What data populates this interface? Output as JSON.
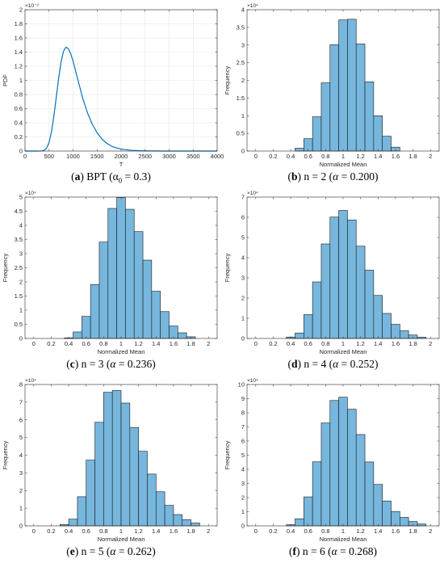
{
  "chart_data": [
    {
      "id": "a",
      "type": "line",
      "caption_letter": "a",
      "caption_text": "BPT (α",
      "caption_sub": "0",
      "caption_rest": " = 0.3)",
      "xlabel": "T",
      "ylabel": "PDF",
      "xlim": [
        0,
        4000
      ],
      "ylim": [
        0,
        0.002
      ],
      "xticks": [
        0,
        500,
        1000,
        1500,
        2000,
        2500,
        3000,
        3500,
        4000
      ],
      "yticks": [
        0,
        0.2,
        0.4,
        0.6,
        0.8,
        1,
        1.2,
        1.4,
        1.6,
        1.8,
        2
      ],
      "yexponent": "×10⁻³",
      "grid": true,
      "color": "#0072BD",
      "series": [
        {
          "x": [
            0,
            250,
            350,
            400,
            450,
            500,
            550,
            600,
            650,
            700,
            750,
            800,
            850,
            900,
            950,
            1000,
            1050,
            1100,
            1200,
            1300,
            1400,
            1500,
            1600,
            1700,
            1800,
            1900,
            2000,
            2200,
            2400,
            2600,
            3000,
            3500,
            4000
          ],
          "y": [
            0,
            0,
            2e-06,
            1.1e-05,
            4.3e-05,
            0.00012,
            0.00027,
            0.00049,
            0.00076,
            0.00103,
            0.00126,
            0.00141,
            0.00147,
            0.00145,
            0.00138,
            0.00127,
            0.00114,
            0.00101,
            0.00075,
            0.00054,
            0.00038,
            0.00026,
            0.00017,
            0.00011,
            7e-05,
            4.5e-05,
            2.8e-05,
            1.1e-05,
            4e-06,
            1.5e-06,
            2e-07,
            0,
            0
          ]
        }
      ]
    },
    {
      "id": "b",
      "type": "bar",
      "caption_letter": "b",
      "caption_text": "n = 2 (",
      "caption_alpha": "α",
      "caption_rest": " = 0.200)",
      "xlabel": "Normalized Mean",
      "ylabel": "Frequency",
      "xlim": [
        -0.1,
        2.1
      ],
      "ylim": [
        0,
        40000
      ],
      "xticks": [
        0,
        0.2,
        0.4,
        0.6,
        0.8,
        1,
        1.2,
        1.4,
        1.6,
        1.8,
        2
      ],
      "yticks": [
        0,
        0.5,
        1,
        1.5,
        2,
        2.5,
        3,
        3.5,
        4
      ],
      "yexponent": "×10⁴",
      "bin_edges": [
        0.45,
        0.55,
        0.65,
        0.75,
        0.85,
        0.95,
        1.05,
        1.15,
        1.25,
        1.35,
        1.45,
        1.55,
        1.65
      ],
      "values": [
        800,
        3500,
        9700,
        19300,
        30100,
        37100,
        37300,
        30300,
        19600,
        10000,
        4200,
        1100
      ],
      "color": "#77B6DD"
    },
    {
      "id": "c",
      "type": "bar",
      "caption_letter": "c",
      "caption_text": "n = 3 (",
      "caption_alpha": "α",
      "caption_rest": " = 0.236)",
      "xlabel": "Normalized Mean",
      "ylabel": "Frequency",
      "xlim": [
        -0.1,
        2.1
      ],
      "ylim": [
        0,
        50000
      ],
      "xticks": [
        0,
        0.2,
        0.4,
        0.6,
        0.8,
        1,
        1.2,
        1.4,
        1.6,
        1.8,
        2
      ],
      "yticks": [
        0,
        0.5,
        1,
        1.5,
        2,
        2.5,
        3,
        3.5,
        4,
        4.5,
        5
      ],
      "yexponent": "×10⁴",
      "bin_edges": [
        0.35,
        0.45,
        0.55,
        0.65,
        0.75,
        0.85,
        0.95,
        1.05,
        1.15,
        1.25,
        1.35,
        1.45,
        1.55,
        1.65,
        1.75,
        1.85
      ],
      "values": [
        200,
        2300,
        7800,
        19100,
        34100,
        46000,
        49800,
        45700,
        37800,
        27700,
        16700,
        9500,
        4400,
        2000,
        600
      ],
      "color": "#77B6DD"
    },
    {
      "id": "d",
      "type": "bar",
      "caption_letter": "d",
      "caption_text": "n = 4 (",
      "caption_alpha": "α",
      "caption_rest": " = 0.252)",
      "xlabel": "Normalized Mean",
      "ylabel": "Frequency",
      "xlim": [
        -0.1,
        2.1
      ],
      "ylim": [
        0,
        70000
      ],
      "xticks": [
        0,
        0.2,
        0.4,
        0.6,
        0.8,
        1,
        1.2,
        1.4,
        1.6,
        1.8,
        2
      ],
      "yticks": [
        0,
        1,
        2,
        3,
        4,
        5,
        6,
        7
      ],
      "yexponent": "×10⁴",
      "bin_edges": [
        0.35,
        0.45,
        0.55,
        0.65,
        0.75,
        0.85,
        0.95,
        1.05,
        1.15,
        1.25,
        1.35,
        1.45,
        1.55,
        1.65,
        1.75,
        1.85,
        1.95
      ],
      "values": [
        700,
        2700,
        11800,
        28000,
        46800,
        60100,
        63400,
        58700,
        45700,
        33800,
        21300,
        12400,
        7000,
        3800,
        1700,
        600
      ],
      "color": "#77B6DD"
    },
    {
      "id": "e",
      "type": "bar",
      "caption_letter": "e",
      "caption_text": "n = 5 (",
      "caption_alpha": "α",
      "caption_rest": " = 0.262)",
      "xlabel": "Normalized Mean",
      "ylabel": "Frequency",
      "xlim": [
        -0.1,
        2.1
      ],
      "ylim": [
        0,
        80000
      ],
      "xticks": [
        0,
        0.2,
        0.4,
        0.6,
        0.8,
        1,
        1.2,
        1.4,
        1.6,
        1.8,
        2
      ],
      "yticks": [
        0,
        1,
        2,
        3,
        4,
        5,
        6,
        7,
        8
      ],
      "yexponent": "×10⁴",
      "bin_edges": [
        0.3,
        0.4,
        0.5,
        0.6,
        0.7,
        0.8,
        0.9,
        1.0,
        1.1,
        1.2,
        1.3,
        1.4,
        1.5,
        1.6,
        1.7,
        1.8,
        1.9
      ],
      "values": [
        800,
        3800,
        16500,
        37200,
        58600,
        75600,
        76600,
        69500,
        55700,
        42200,
        29300,
        19300,
        11600,
        6400,
        3500,
        1600
      ],
      "color": "#77B6DD"
    },
    {
      "id": "f",
      "type": "bar",
      "caption_letter": "f",
      "caption_text": "n = 6 (",
      "caption_alpha": "α",
      "caption_rest": " = 0.268)",
      "xlabel": "Normalized Mean",
      "ylabel": "Frequency",
      "xlim": [
        -0.1,
        2.1
      ],
      "ylim": [
        0,
        100000
      ],
      "xticks": [
        0,
        0.2,
        0.4,
        0.6,
        0.8,
        1,
        1.2,
        1.4,
        1.6,
        1.8,
        2
      ],
      "yticks": [
        0,
        1,
        2,
        3,
        4,
        5,
        6,
        7,
        8,
        9,
        10
      ],
      "yexponent": "×10⁴",
      "bin_edges": [
        0.35,
        0.45,
        0.55,
        0.65,
        0.75,
        0.85,
        0.95,
        1.05,
        1.15,
        1.25,
        1.35,
        1.45,
        1.55,
        1.65,
        1.75,
        1.85,
        1.95
      ],
      "values": [
        800,
        5000,
        20500,
        45300,
        72800,
        88700,
        91000,
        82500,
        64600,
        45200,
        29300,
        17600,
        10200,
        6000,
        3100,
        1300
      ],
      "color": "#77B6DD"
    }
  ]
}
